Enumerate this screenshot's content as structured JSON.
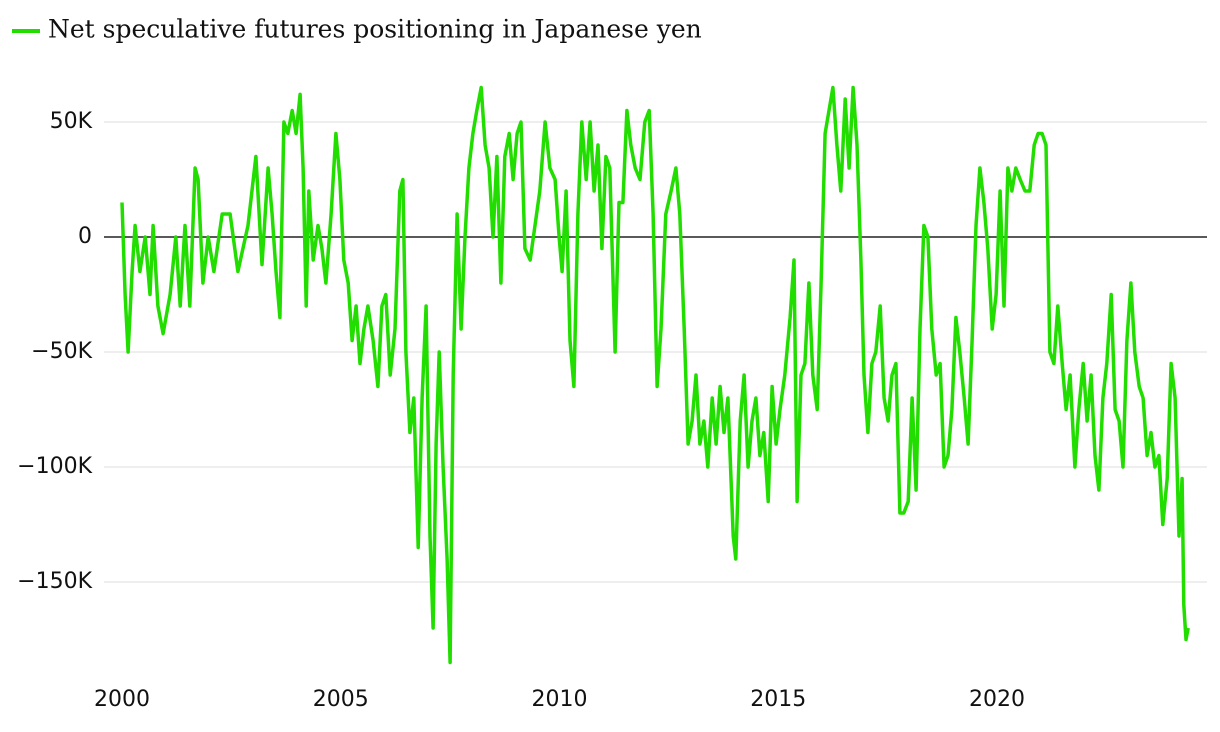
{
  "chart_data": {
    "type": "line",
    "series": [
      {
        "name": "Net speculative futures positioning in Japanese yen",
        "color": "#22dd00",
        "x": [
          2000.0,
          2000.07,
          2000.14,
          2000.23,
          2000.3,
          2000.41,
          2000.53,
          2000.64,
          2000.71,
          2000.82,
          2000.94,
          2001.1,
          2001.23,
          2001.33,
          2001.44,
          2001.55,
          2001.67,
          2001.74,
          2001.85,
          2001.97,
          2002.1,
          2002.29,
          2002.47,
          2002.65,
          2002.88,
          2003.06,
          2003.2,
          2003.34,
          2003.43,
          2003.52,
          2003.61,
          2003.7,
          2003.79,
          2003.89,
          2003.98,
          2004.07,
          2004.14,
          2004.21,
          2004.27,
          2004.37,
          2004.48,
          2004.57,
          2004.66,
          2004.78,
          2004.89,
          2004.98,
          2005.07,
          2005.17,
          2005.26,
          2005.35,
          2005.44,
          2005.53,
          2005.62,
          2005.74,
          2005.85,
          2005.94,
          2006.03,
          2006.13,
          2006.24,
          2006.35,
          2006.42,
          2006.49,
          2006.58,
          2006.67,
          2006.77,
          2006.86,
          2006.95,
          2007.04,
          2007.11,
          2007.18,
          2007.25,
          2007.34,
          2007.43,
          2007.5,
          2007.57,
          2007.66,
          2007.75,
          2007.84,
          2007.93,
          2008.02,
          2008.11,
          2008.21,
          2008.3,
          2008.39,
          2008.48,
          2008.57,
          2008.66,
          2008.75,
          2008.85,
          2008.94,
          2009.03,
          2009.12,
          2009.21,
          2009.33,
          2009.44,
          2009.55,
          2009.67,
          2009.78,
          2009.9,
          2009.99,
          2010.06,
          2010.15,
          2010.24,
          2010.33,
          2010.42,
          2010.51,
          2010.61,
          2010.7,
          2010.79,
          2010.88,
          2010.97,
          2011.06,
          2011.15,
          2011.27,
          2011.36,
          2011.45,
          2011.54,
          2011.63,
          2011.73,
          2011.84,
          2011.95,
          2012.05,
          2012.14,
          2012.23,
          2012.32,
          2012.43,
          2012.55,
          2012.66,
          2012.75,
          2012.85,
          2012.94,
          2013.03,
          2013.12,
          2013.21,
          2013.3,
          2013.39,
          2013.49,
          2013.58,
          2013.67,
          2013.76,
          2013.85,
          2013.97,
          2014.03,
          2014.13,
          2014.22,
          2014.31,
          2014.4,
          2014.49,
          2014.58,
          2014.67,
          2014.77,
          2014.86,
          2014.95,
          2015.04,
          2015.15,
          2015.27,
          2015.36,
          2015.43,
          2015.52,
          2015.61,
          2015.7,
          2015.79,
          2015.89,
          2015.98,
          2016.07,
          2016.16,
          2016.25,
          2016.34,
          2016.43,
          2016.53,
          2016.62,
          2016.71,
          2016.8,
          2016.89,
          2016.96,
          2017.05,
          2017.14,
          2017.23,
          2017.33,
          2017.42,
          2017.51,
          2017.6,
          2017.69,
          2017.78,
          2017.87,
          2017.97,
          2018.06,
          2018.15,
          2018.24,
          2018.33,
          2018.42,
          2018.51,
          2018.61,
          2018.7,
          2018.79,
          2018.88,
          2018.97,
          2019.06,
          2019.15,
          2019.25,
          2019.34,
          2019.43,
          2019.52,
          2019.61,
          2019.7,
          2019.79,
          2019.89,
          2019.98,
          2020.07,
          2020.16,
          2020.25,
          2020.34,
          2020.43,
          2020.53,
          2020.64,
          2020.75,
          2020.85,
          2020.94,
          2021.03,
          2021.12,
          2021.21,
          2021.3,
          2021.39,
          2021.49,
          2021.58,
          2021.67,
          2021.78,
          2021.87,
          2021.97,
          2022.06,
          2022.15,
          2022.24,
          2022.33,
          2022.42,
          2022.51,
          2022.61,
          2022.7,
          2022.79,
          2022.88,
          2022.97,
          2023.06,
          2023.15,
          2023.25,
          2023.34,
          2023.43,
          2023.52,
          2023.61,
          2023.7,
          2023.79,
          2023.89,
          2023.98,
          2024.07,
          2024.16,
          2024.23,
          2024.27,
          2024.32,
          2024.37
        ],
        "values": [
          15000,
          -25000,
          -50000,
          -15000,
          5000,
          -15000,
          0,
          -25000,
          5000,
          -30000,
          -42000,
          -25000,
          0,
          -30000,
          5000,
          -30000,
          30000,
          25000,
          -20000,
          0,
          -15000,
          10000,
          10000,
          -15000,
          5000,
          35000,
          -12000,
          30000,
          10000,
          -15000,
          -35000,
          50000,
          45000,
          55000,
          45000,
          62000,
          30000,
          -30000,
          20000,
          -10000,
          5000,
          -5000,
          -20000,
          10000,
          45000,
          25000,
          -10000,
          -20000,
          -45000,
          -30000,
          -55000,
          -40000,
          -30000,
          -45000,
          -65000,
          -30000,
          -25000,
          -60000,
          -40000,
          20000,
          25000,
          -50000,
          -85000,
          -70000,
          -135000,
          -70000,
          -30000,
          -130000,
          -170000,
          -90000,
          -50000,
          -100000,
          -140000,
          -185000,
          -60000,
          10000,
          -40000,
          0,
          30000,
          45000,
          55000,
          65000,
          40000,
          30000,
          0,
          35000,
          -20000,
          35000,
          45000,
          25000,
          45000,
          50000,
          -5000,
          -10000,
          5000,
          20000,
          50000,
          30000,
          25000,
          0,
          -15000,
          20000,
          -45000,
          -65000,
          10000,
          50000,
          25000,
          50000,
          20000,
          40000,
          -5000,
          35000,
          30000,
          -50000,
          15000,
          15000,
          55000,
          40000,
          30000,
          25000,
          50000,
          55000,
          10000,
          -65000,
          -40000,
          10000,
          20000,
          30000,
          10000,
          -40000,
          -90000,
          -80000,
          -60000,
          -90000,
          -80000,
          -100000,
          -70000,
          -90000,
          -65000,
          -85000,
          -70000,
          -130000,
          -140000,
          -80000,
          -60000,
          -100000,
          -80000,
          -70000,
          -95000,
          -85000,
          -115000,
          -65000,
          -90000,
          -75000,
          -60000,
          -35000,
          -10000,
          -115000,
          -60000,
          -55000,
          -20000,
          -60000,
          -75000,
          -20000,
          45000,
          55000,
          65000,
          40000,
          20000,
          60000,
          30000,
          65000,
          40000,
          -10000,
          -60000,
          -85000,
          -55000,
          -50000,
          -30000,
          -70000,
          -80000,
          -60000,
          -55000,
          -120000,
          -120000,
          -115000,
          -70000,
          -110000,
          -40000,
          5000,
          0,
          -40000,
          -60000,
          -55000,
          -100000,
          -95000,
          -75000,
          -35000,
          -50000,
          -70000,
          -90000,
          -45000,
          5000,
          30000,
          15000,
          -5000,
          -40000,
          -25000,
          20000,
          -30000,
          30000,
          20000,
          30000,
          25000,
          20000,
          20000,
          40000,
          45000,
          45000,
          40000,
          -50000,
          -55000,
          -30000,
          -55000,
          -75000,
          -60000,
          -100000,
          -75000,
          -55000,
          -80000,
          -60000,
          -95000,
          -110000,
          -70000,
          -55000,
          -25000,
          -75000,
          -80000,
          -100000,
          -45000,
          -20000,
          -50000,
          -65000,
          -70000,
          -95000,
          -85000,
          -100000,
          -95000,
          -125000,
          -105000,
          -55000,
          -70000,
          -130000,
          -105000,
          -160000,
          -175000,
          -170000
        ]
      }
    ],
    "xlim": [
      2000,
      2024.8
    ],
    "xticks": [
      2000,
      2005,
      2010,
      2015,
      2020
    ],
    "ylim": [
      -190000,
      72000
    ],
    "yticks": [
      {
        "value": -150000,
        "label": "−150K"
      },
      {
        "value": -100000,
        "label": "−100K"
      },
      {
        "value": -50000,
        "label": "−50K"
      },
      0,
      {
        "value": 50000,
        "label": "50K"
      }
    ],
    "grid": true
  }
}
